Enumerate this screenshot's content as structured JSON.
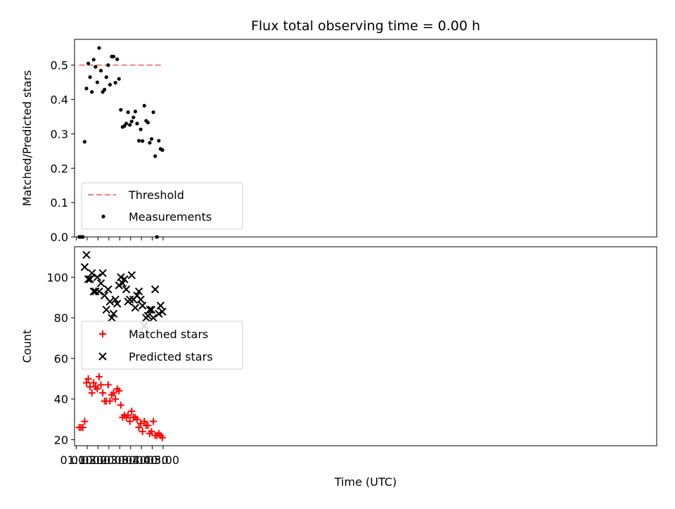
{
  "chart_data": [
    {
      "type": "scatter",
      "title": "Flux total observing time = 0.00 h",
      "xlabel": "",
      "ylabel": "Matched/Predicted stars",
      "ylim": [
        0,
        0.575
      ],
      "yticks": [
        "0.0",
        "0.1",
        "0.2",
        "0.3",
        "0.4",
        "0.5"
      ],
      "legend": {
        "placement": "lower-left",
        "entries": [
          "Threshold",
          "Measurements"
        ]
      },
      "threshold": {
        "name": "Threshold",
        "value": 0.5,
        "x_start": "01:08",
        "x_end": "04:58",
        "color": "#f08080",
        "style": "dashed"
      },
      "series": [
        {
          "name": "Measurements",
          "color": "#000000",
          "marker": "dot",
          "x": [
            "01:08",
            "01:13",
            "01:18",
            "01:23",
            "01:28",
            "01:33",
            "01:38",
            "01:43",
            "01:48",
            "01:53",
            "01:58",
            "02:03",
            "02:08",
            "02:13",
            "02:18",
            "02:23",
            "02:28",
            "02:33",
            "02:38",
            "02:43",
            "02:48",
            "02:53",
            "02:58",
            "03:03",
            "03:08",
            "03:13",
            "03:18",
            "03:23",
            "03:28",
            "03:33",
            "03:38",
            "03:43",
            "03:48",
            "03:53",
            "03:58",
            "04:03",
            "04:08",
            "04:13",
            "04:18",
            "04:23",
            "04:28",
            "04:33",
            "04:38",
            "04:43",
            "04:48",
            "04:53",
            "04:58"
          ],
          "y": [
            0.0,
            0.0,
            0.0,
            0.277,
            0.432,
            0.505,
            0.465,
            0.422,
            0.516,
            0.495,
            0.45,
            0.55,
            0.484,
            0.422,
            0.429,
            0.465,
            0.5,
            0.443,
            0.525,
            0.525,
            0.449,
            0.517,
            0.46,
            0.37,
            0.32,
            0.323,
            0.33,
            0.363,
            0.326,
            0.336,
            0.348,
            0.365,
            0.33,
            0.28,
            0.313,
            0.279,
            0.382,
            0.338,
            0.333,
            0.274,
            0.285,
            0.363,
            0.235,
            0.0,
            0.28,
            0.256,
            0.253
          ]
        }
      ]
    },
    {
      "type": "scatter",
      "title": "",
      "xlabel": "Time (UTC)",
      "ylabel": "Count",
      "ylim": [
        17,
        115
      ],
      "yticks": [
        "20",
        "40",
        "60",
        "80",
        "100"
      ],
      "xticks": [
        "01:00",
        "01:30",
        "02:00",
        "02:30",
        "03:00",
        "03:30",
        "04:00",
        "04:30",
        "05:00"
      ],
      "legend": {
        "placement": "center-left",
        "entries": [
          "Matched stars",
          "Predicted stars"
        ]
      },
      "series": [
        {
          "name": "Matched stars",
          "color": "#ff0000",
          "marker": "plus",
          "x": [
            "01:08",
            "01:13",
            "01:18",
            "01:23",
            "01:28",
            "01:33",
            "01:38",
            "01:43",
            "01:48",
            "01:53",
            "01:58",
            "02:03",
            "02:08",
            "02:13",
            "02:18",
            "02:23",
            "02:28",
            "02:33",
            "02:38",
            "02:43",
            "02:48",
            "02:53",
            "02:58",
            "03:03",
            "03:08",
            "03:13",
            "03:18",
            "03:23",
            "03:28",
            "03:33",
            "03:38",
            "03:43",
            "03:48",
            "03:53",
            "03:58",
            "04:03",
            "04:08",
            "04:13",
            "04:18",
            "04:23",
            "04:28",
            "04:33",
            "04:38",
            "04:43",
            "04:48",
            "04:53",
            "04:58"
          ],
          "y": [
            26,
            26,
            26,
            29,
            48,
            50,
            46,
            43,
            48,
            46,
            45,
            51,
            47,
            43,
            39,
            39,
            47,
            39,
            42,
            43,
            40,
            45,
            44,
            37,
            31,
            32,
            31,
            32,
            29,
            34,
            31,
            31,
            30,
            26,
            28,
            24,
            29,
            27,
            27,
            23,
            24,
            29,
            22,
            22,
            23,
            22,
            21
          ]
        },
        {
          "name": "Predicted stars",
          "color": "#000000",
          "marker": "x",
          "x": [
            "01:23",
            "01:28",
            "01:33",
            "01:38",
            "01:43",
            "01:48",
            "01:53",
            "01:58",
            "02:03",
            "02:08",
            "02:13",
            "02:18",
            "02:23",
            "02:28",
            "02:33",
            "02:38",
            "02:43",
            "02:48",
            "02:53",
            "02:58",
            "03:03",
            "03:08",
            "03:13",
            "03:18",
            "03:23",
            "03:28",
            "03:33",
            "03:38",
            "03:43",
            "03:48",
            "03:53",
            "03:58",
            "04:03",
            "04:08",
            "04:13",
            "04:18",
            "04:23",
            "04:28",
            "04:33",
            "04:38",
            "04:48",
            "04:53",
            "04:58"
          ],
          "y": [
            105,
            111,
            99,
            99,
            102,
            93,
            93,
            100,
            93,
            97,
            102,
            91,
            84,
            94,
            88,
            80,
            82,
            89,
            87,
            96,
            100,
            97,
            99,
            94,
            88,
            89,
            101,
            89,
            85,
            91,
            93,
            89,
            86,
            76,
            80,
            81,
            84,
            84,
            80,
            94,
            82,
            86,
            83
          ]
        }
      ]
    }
  ]
}
